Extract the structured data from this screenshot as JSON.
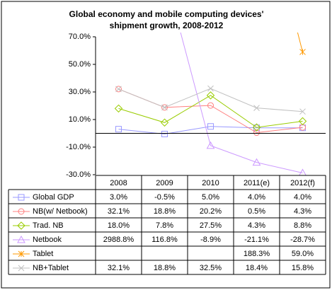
{
  "chart_data": {
    "type": "line",
    "title": "Global economy and mobile computing devices' shipment growth, 2008-2012",
    "categories": [
      "2008",
      "2009",
      "2010",
      "2011(e)",
      "2012(f)"
    ],
    "ylim": [
      -30,
      70
    ],
    "yticks": [
      {
        "value": -30,
        "label": "-30.0%"
      },
      {
        "value": -10,
        "label": "-10.0%"
      },
      {
        "value": 10,
        "label": "10.0%"
      },
      {
        "value": 30,
        "label": "30.0%"
      },
      {
        "value": 50,
        "label": "50.0%"
      },
      {
        "value": 70,
        "label": "70.0%"
      }
    ],
    "series": [
      {
        "name": "Global GDP",
        "color": "#9999ff",
        "marker": "square",
        "values": [
          3.0,
          -0.5,
          5.0,
          4.0,
          4.0
        ],
        "value_labels": [
          "3.0%",
          "-0.5%",
          "5.0%",
          "4.0%",
          "4.0%"
        ]
      },
      {
        "name": "NB(w/ Netbook)",
        "color": "#ff8080",
        "marker": "circle",
        "values": [
          32.1,
          18.8,
          20.2,
          0.5,
          4.3
        ],
        "value_labels": [
          "32.1%",
          "18.8%",
          "20.2%",
          "0.5%",
          "4.3%"
        ]
      },
      {
        "name": "Trad. NB",
        "color": "#99cc00",
        "marker": "diamond",
        "values": [
          18.0,
          7.8,
          27.5,
          4.3,
          8.8
        ],
        "value_labels": [
          "18.0%",
          "7.8%",
          "27.5%",
          "4.3%",
          "8.8%"
        ]
      },
      {
        "name": "Netbook",
        "color": "#cc99ff",
        "marker": "triangle",
        "values": [
          2988.8,
          116.8,
          -8.9,
          -21.1,
          -28.7
        ],
        "value_labels": [
          "2988.8%",
          "116.8%",
          "-8.9%",
          "-21.1%",
          "-28.7%"
        ]
      },
      {
        "name": "Tablet",
        "color": "#ff9900",
        "marker": "star",
        "values": [
          null,
          null,
          null,
          188.3,
          59.0
        ],
        "value_labels": [
          null,
          null,
          null,
          "188.3%",
          "59.0%"
        ]
      },
      {
        "name": "NB+Tablet",
        "color": "#c0c0c0",
        "marker": "x",
        "values": [
          32.1,
          18.8,
          32.5,
          18.4,
          15.8
        ],
        "value_labels": [
          "32.1%",
          "18.8%",
          "32.5%",
          "18.4%",
          "15.8%"
        ]
      }
    ]
  }
}
